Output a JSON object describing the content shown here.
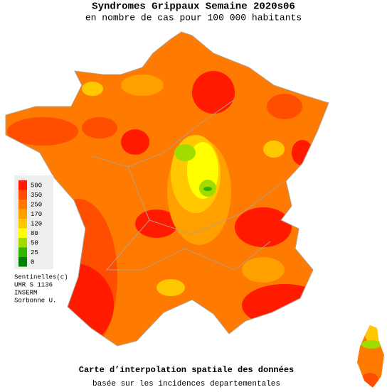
{
  "header": {
    "title": "Syndromes Grippaux Semaine 2020s06",
    "subtitle": "en nombre de cas pour 100 000 habitants"
  },
  "legend": {
    "items": [
      {
        "value": 500,
        "color": "#ff1a00"
      },
      {
        "value": 350,
        "color": "#ff4e00"
      },
      {
        "value": 250,
        "color": "#ff7a00"
      },
      {
        "value": 170,
        "color": "#ffa000"
      },
      {
        "value": 120,
        "color": "#ffc800"
      },
      {
        "value": 80,
        "color": "#ffff00"
      },
      {
        "value": 50,
        "color": "#a0dc00"
      },
      {
        "value": 25,
        "color": "#30b400"
      },
      {
        "value": 0,
        "color": "#008000"
      }
    ]
  },
  "credits": [
    "Sentinelles(c)",
    "UMR S 1136",
    "INSERM",
    "Sorbonne U."
  ],
  "footer": {
    "title": "Carte d’interpolation spatiale des données",
    "subtitle": "basée sur les incidences departementales"
  }
}
